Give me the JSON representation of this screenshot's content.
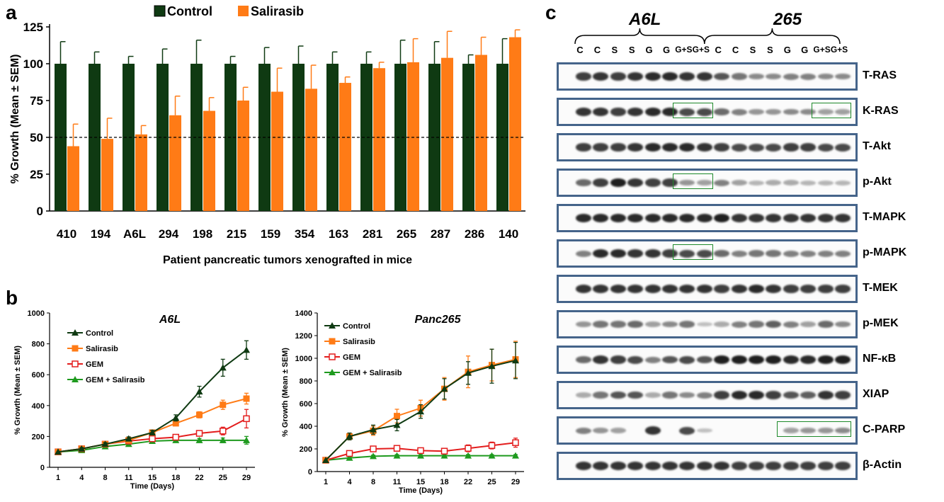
{
  "panels": {
    "a": "a",
    "b": "b",
    "c": "c"
  },
  "panel_a": {
    "legend": [
      {
        "name": "Control",
        "color": "#0f3a12"
      },
      {
        "name": "Salirasib",
        "color": "#ff7b16"
      }
    ],
    "ylabel": "% Growth (Mean ± SEM)",
    "xlabel": "Patient pancreatic tumors xenografted in mice",
    "threshold_value": 50
  },
  "chart_data": [
    {
      "type": "bar",
      "categories": [
        "410",
        "194",
        "A6L",
        "294",
        "198",
        "215",
        "159",
        "354",
        "163",
        "281",
        "265",
        "287",
        "286",
        "140"
      ],
      "series": [
        {
          "name": "Control",
          "values": [
            100,
            100,
            100,
            100,
            100,
            100,
            100,
            100,
            100,
            100,
            100,
            100,
            100,
            100
          ],
          "errors": [
            15,
            8,
            5,
            10,
            16,
            5,
            11,
            12,
            8,
            8,
            16,
            15,
            6,
            17
          ]
        },
        {
          "name": "Salirasib",
          "values": [
            44,
            49,
            52,
            65,
            68,
            75,
            81,
            83,
            87,
            97,
            101,
            104,
            106,
            118
          ],
          "errors": [
            15,
            14,
            6,
            13,
            9,
            9,
            16,
            16,
            4,
            4,
            16,
            18,
            12,
            5
          ]
        }
      ],
      "ylim": [
        0,
        125
      ],
      "yticks": [
        "0",
        "25",
        "50",
        "75",
        "100",
        "125"
      ],
      "ylabel": "% Growth (Mean ± SEM)",
      "xlabel": "Patient pancreatic tumors xenografted in mice",
      "legend": "top-center"
    },
    {
      "type": "line",
      "title": "A6L",
      "x": [
        "1",
        "4",
        "8",
        "11",
        "15",
        "18",
        "22",
        "25",
        "29"
      ],
      "series": [
        {
          "name": "Control",
          "values": [
            100,
            120,
            150,
            185,
            225,
            320,
            490,
            645,
            760
          ],
          "errors": [
            0,
            8,
            10,
            12,
            15,
            20,
            35,
            55,
            60
          ],
          "color": "#0f3a12",
          "marker": "triangle"
        },
        {
          "name": "Salirasib",
          "values": [
            100,
            120,
            150,
            175,
            225,
            285,
            340,
            405,
            445
          ],
          "errors": [
            0,
            6,
            10,
            10,
            12,
            15,
            20,
            30,
            35
          ],
          "color": "#ff7b16",
          "marker": "square"
        },
        {
          "name": "GEM",
          "values": [
            100,
            120,
            150,
            170,
            185,
            195,
            220,
            235,
            315
          ],
          "errors": [
            0,
            6,
            8,
            10,
            10,
            12,
            15,
            25,
            60
          ],
          "color": "#e31d1d",
          "marker": "open-square"
        },
        {
          "name": "GEM + Salirasib",
          "values": [
            100,
            110,
            135,
            150,
            170,
            175,
            175,
            175,
            175
          ],
          "errors": [
            0,
            5,
            8,
            8,
            10,
            10,
            12,
            15,
            25
          ],
          "color": "#1e9a1e",
          "marker": "triangle"
        }
      ],
      "ylim": [
        0,
        1000
      ],
      "yticks": [
        "0",
        "200",
        "400",
        "600",
        "800",
        "1000"
      ],
      "ylabel": "% Growth (Mean ± SEM)",
      "xlabel": "Time (Days)",
      "legend": "top-left"
    },
    {
      "type": "line",
      "title": "Panc265",
      "x": [
        "1",
        "4",
        "8",
        "11",
        "15",
        "18",
        "22",
        "25",
        "29"
      ],
      "series": [
        {
          "name": "Control",
          "values": [
            100,
            310,
            370,
            410,
            530,
            730,
            870,
            930,
            980
          ],
          "errors": [
            0,
            30,
            40,
            50,
            60,
            90,
            100,
            150,
            160
          ],
          "color": "#0f3a12",
          "marker": "triangle"
        },
        {
          "name": "Salirasib",
          "values": [
            100,
            310,
            360,
            490,
            560,
            730,
            880,
            940,
            990
          ],
          "errors": [
            0,
            30,
            40,
            60,
            70,
            100,
            140,
            140,
            160
          ],
          "color": "#ff7b16",
          "marker": "square"
        },
        {
          "name": "GEM",
          "values": [
            100,
            160,
            200,
            205,
            185,
            180,
            205,
            230,
            255
          ],
          "errors": [
            0,
            20,
            20,
            25,
            20,
            20,
            30,
            30,
            40
          ],
          "color": "#e31d1d",
          "marker": "open-square"
        },
        {
          "name": "GEM + Salirasib",
          "values": [
            100,
            120,
            135,
            140,
            140,
            140,
            140,
            140,
            140
          ],
          "errors": [
            0,
            10,
            10,
            10,
            10,
            10,
            10,
            10,
            10
          ],
          "color": "#1e9a1e",
          "marker": "triangle"
        }
      ],
      "ylim": [
        0,
        1400
      ],
      "yticks": [
        "0",
        "200",
        "400",
        "600",
        "800",
        "1000",
        "1200",
        "1400"
      ],
      "ylabel": "% Growth (Mean ± SEM)",
      "xlabel": "Time (Days)",
      "legend": "top-left"
    }
  ],
  "blot": {
    "groups": [
      "A6L",
      "265"
    ],
    "lanes": [
      "C",
      "C",
      "S",
      "S",
      "G",
      "G",
      "G+S",
      "G+S",
      "C",
      "C",
      "S",
      "S",
      "G",
      "G",
      "G+S",
      "G+S"
    ],
    "rows": [
      {
        "label": "T-RAS",
        "intensities": [
          0.8,
          0.85,
          0.8,
          0.85,
          0.9,
          0.9,
          0.85,
          0.85,
          0.7,
          0.55,
          0.45,
          0.45,
          0.5,
          0.5,
          0.45,
          0.45
        ]
      },
      {
        "label": "K-RAS",
        "intensities": [
          0.85,
          0.85,
          0.8,
          0.85,
          0.9,
          0.9,
          0.75,
          0.75,
          0.6,
          0.5,
          0.4,
          0.4,
          0.45,
          0.45,
          0.35,
          0.35
        ]
      },
      {
        "label": "T-Akt",
        "intensities": [
          0.8,
          0.8,
          0.8,
          0.85,
          0.9,
          0.9,
          0.9,
          0.85,
          0.8,
          0.75,
          0.75,
          0.75,
          0.8,
          0.8,
          0.75,
          0.75
        ]
      },
      {
        "label": "p-Akt",
        "intensities": [
          0.6,
          0.8,
          0.95,
          0.85,
          0.8,
          0.8,
          0.4,
          0.35,
          0.5,
          0.35,
          0.25,
          0.3,
          0.3,
          0.25,
          0.25,
          0.25
        ]
      },
      {
        "label": "T-MAPK",
        "intensities": [
          0.9,
          0.9,
          0.9,
          0.9,
          0.9,
          0.9,
          0.9,
          0.9,
          0.95,
          0.85,
          0.85,
          0.85,
          0.85,
          0.85,
          0.85,
          0.85
        ]
      },
      {
        "label": "p-MAPK",
        "intensities": [
          0.5,
          0.9,
          0.9,
          0.85,
          0.85,
          0.8,
          0.75,
          0.75,
          0.6,
          0.5,
          0.55,
          0.55,
          0.5,
          0.5,
          0.5,
          0.5
        ]
      },
      {
        "label": "T-MEK",
        "intensities": [
          0.85,
          0.85,
          0.85,
          0.85,
          0.85,
          0.85,
          0.85,
          0.85,
          0.8,
          0.85,
          0.9,
          0.85,
          0.8,
          0.8,
          0.8,
          0.8
        ]
      },
      {
        "label": "p-MEK",
        "intensities": [
          0.4,
          0.55,
          0.55,
          0.6,
          0.35,
          0.45,
          0.55,
          0.2,
          0.3,
          0.5,
          0.55,
          0.65,
          0.5,
          0.35,
          0.6,
          0.45
        ]
      },
      {
        "label": "NF-κB",
        "intensities": [
          0.6,
          0.85,
          0.8,
          0.75,
          0.5,
          0.7,
          0.75,
          0.7,
          0.95,
          0.95,
          0.95,
          0.95,
          0.9,
          0.9,
          0.95,
          0.95
        ]
      },
      {
        "label": "XIAP",
        "intensities": [
          0.3,
          0.55,
          0.7,
          0.7,
          0.3,
          0.55,
          0.45,
          0.5,
          0.8,
          0.9,
          0.9,
          0.8,
          0.7,
          0.65,
          0.85,
          0.8
        ]
      },
      {
        "label": "C-PARP",
        "intensities": [
          0.5,
          0.4,
          0.35,
          0,
          0.85,
          0,
          0.75,
          0.2,
          0,
          0,
          0,
          0,
          0.35,
          0.4,
          0.4,
          0.45
        ]
      },
      {
        "label": "β-Actin",
        "intensities": [
          0.85,
          0.85,
          0.85,
          0.85,
          0.85,
          0.85,
          0.85,
          0.85,
          0.85,
          0.8,
          0.8,
          0.8,
          0.8,
          0.8,
          0.8,
          0.8
        ]
      }
    ],
    "highlights": [
      {
        "row": "K-RAS",
        "lanes": [
          6,
          7
        ]
      },
      {
        "row": "K-RAS",
        "lanes": [
          14,
          15
        ]
      },
      {
        "row": "p-Akt",
        "lanes": [
          6,
          7
        ]
      },
      {
        "row": "p-MAPK",
        "lanes": [
          6,
          7
        ]
      },
      {
        "row": "C-PARP",
        "lanes": [
          12,
          15
        ]
      }
    ]
  }
}
